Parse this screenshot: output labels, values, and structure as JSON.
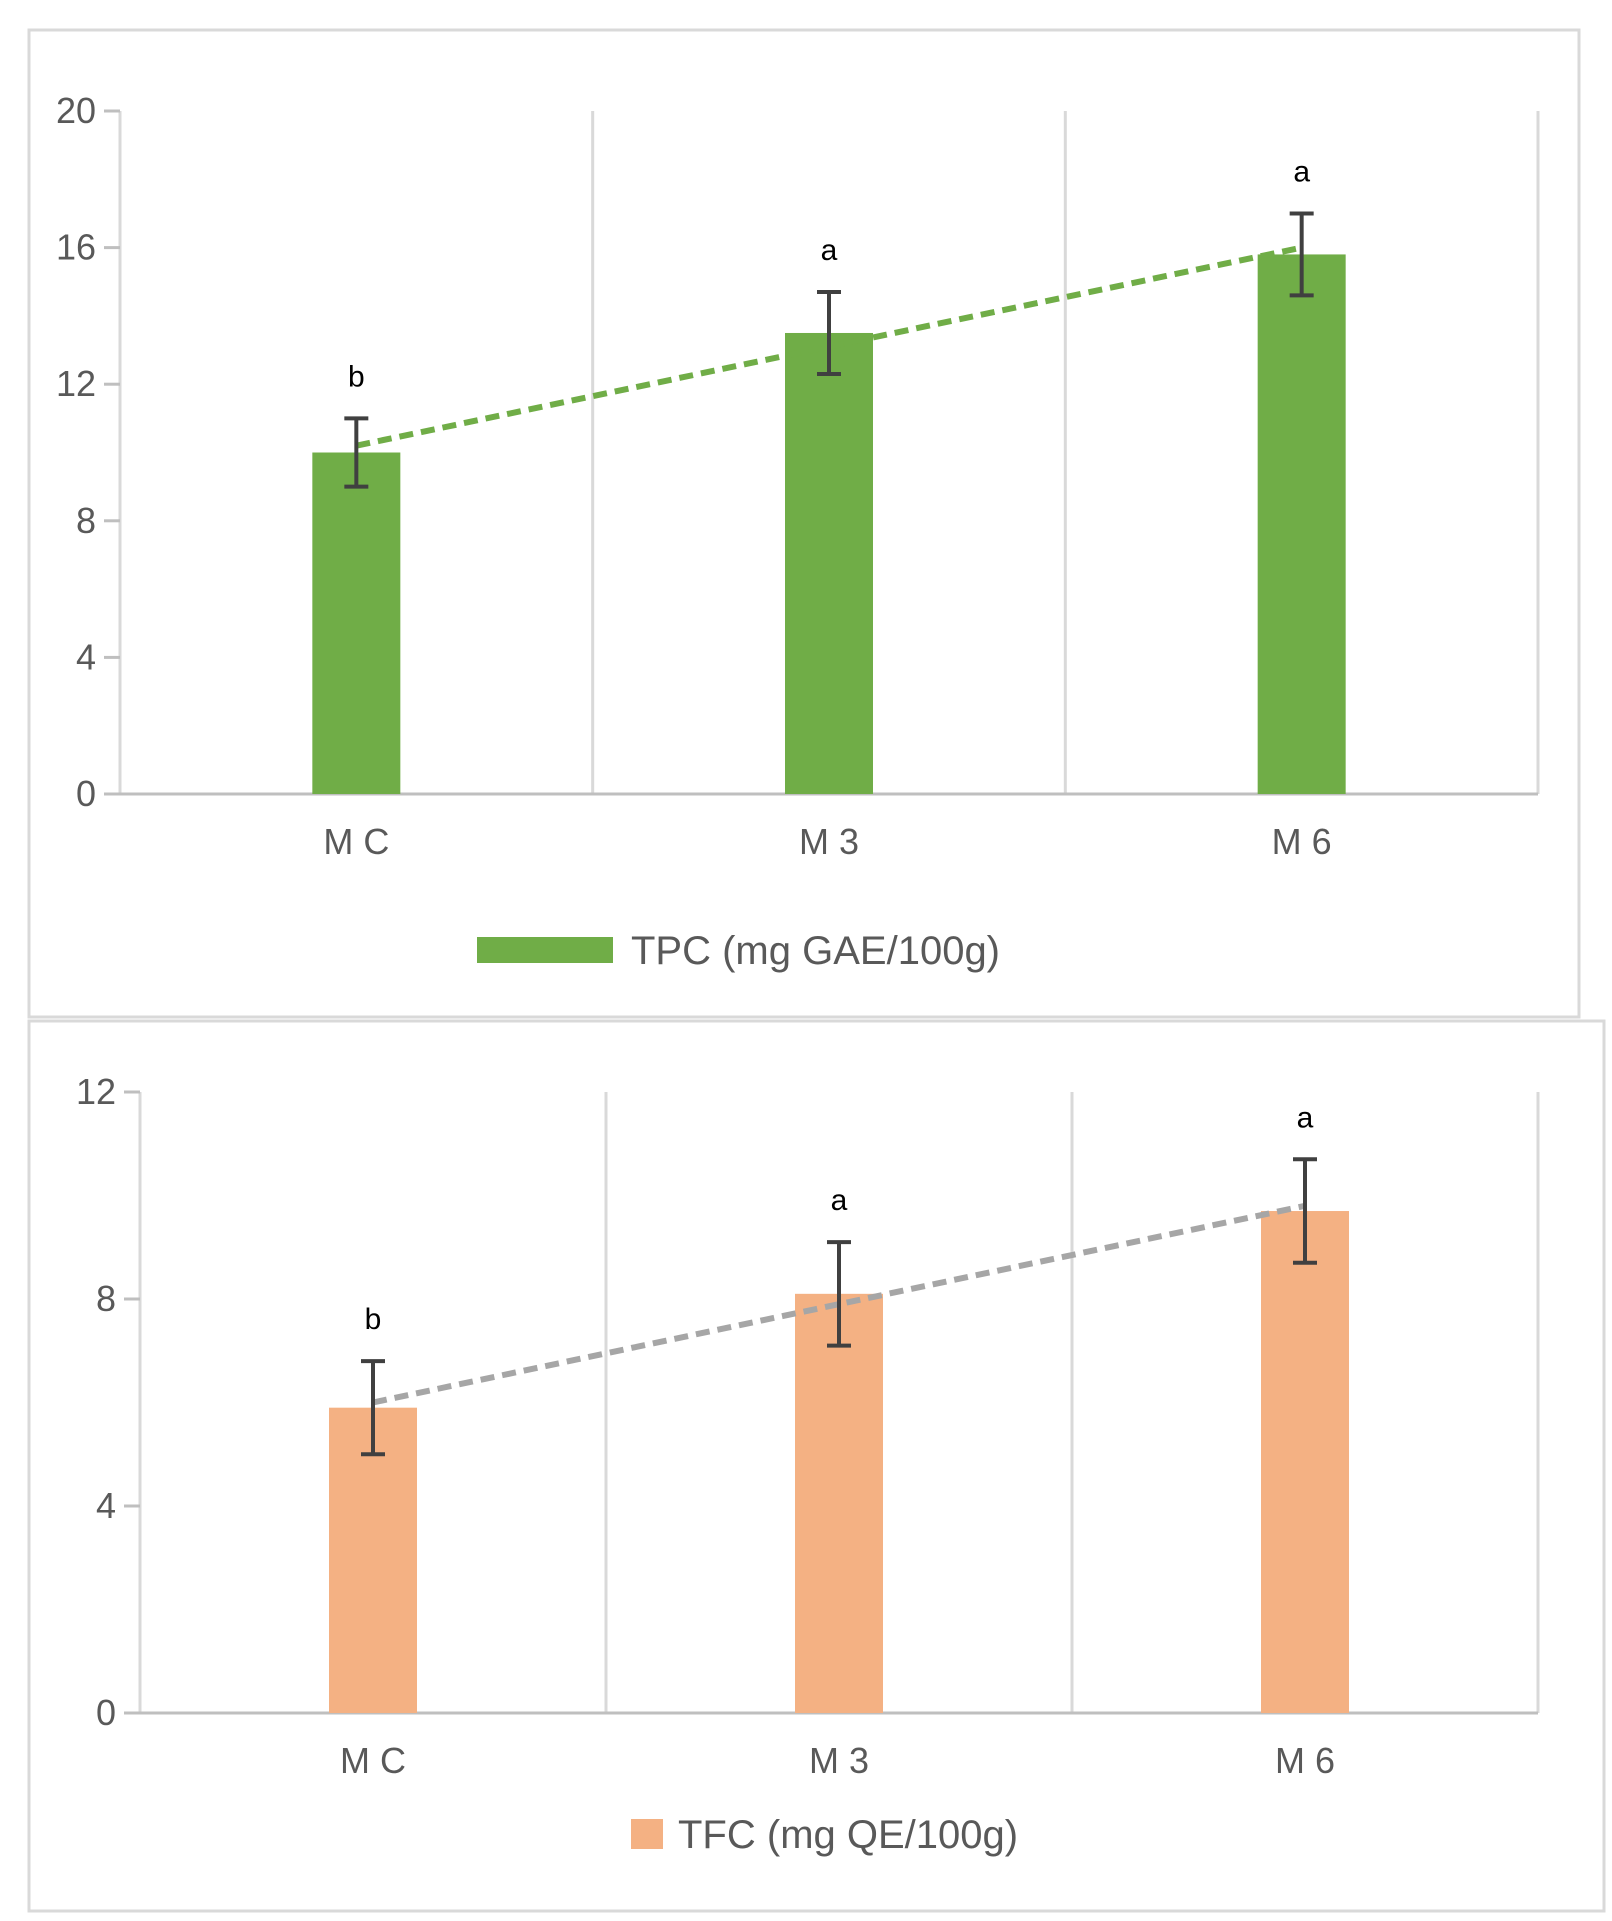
{
  "chart_data": [
    {
      "type": "bar",
      "categories": [
        "M C",
        "M 3",
        "M 6"
      ],
      "series": [
        {
          "name": "TPC (mg GAE/100g)",
          "values": [
            10.0,
            13.5,
            15.8
          ],
          "errors": [
            1.0,
            1.2,
            1.2
          ],
          "significance": [
            "b",
            "a",
            "a"
          ],
          "color": "#70ad47"
        }
      ],
      "trendline": {
        "type": "linear",
        "color": "#70ad47",
        "style": "dashed"
      },
      "ylim": [
        0,
        20
      ],
      "yticks": [
        "0",
        "4",
        "8",
        "12",
        "16",
        "20"
      ],
      "grid": "vertical",
      "legend": "bottom",
      "xlabel": "",
      "ylabel": ""
    },
    {
      "type": "bar",
      "categories": [
        "M C",
        "M 3",
        "M 6"
      ],
      "series": [
        {
          "name": "TFC (mg QE/100g)",
          "values": [
            5.9,
            8.1,
            9.7
          ],
          "errors": [
            0.9,
            1.0,
            1.0
          ],
          "significance": [
            "b",
            "a",
            "a"
          ],
          "color": "#f4b183"
        }
      ],
      "trendline": {
        "type": "linear",
        "color": "#a6a6a6",
        "style": "dashed"
      },
      "ylim": [
        0,
        12
      ],
      "yticks": [
        "0",
        "4",
        "8",
        "12"
      ],
      "grid": "vertical",
      "legend": "bottom",
      "xlabel": "",
      "ylabel": ""
    }
  ]
}
